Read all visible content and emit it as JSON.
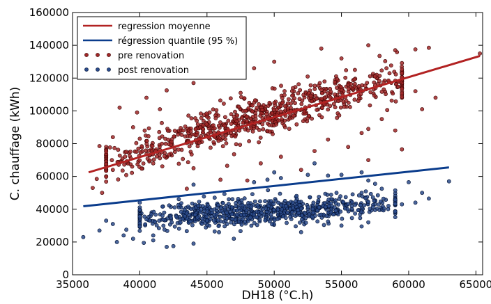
{
  "chart_data": {
    "type": "scatter",
    "title": "",
    "xlabel": "DH18 (°C.h)",
    "ylabel": "C. chauffage (kWh)",
    "xlim": [
      35000,
      65500
    ],
    "ylim": [
      0,
      160000
    ],
    "grid": false,
    "legend_position": "top-left",
    "x_ticks": [
      35000,
      40000,
      45000,
      50000,
      55000,
      60000,
      65000
    ],
    "y_ticks": [
      0,
      20000,
      40000,
      60000,
      80000,
      100000,
      120000,
      140000,
      160000
    ],
    "x_tick_labels": [
      "35000",
      "40000",
      "45000",
      "50000",
      "55000",
      "60000",
      "65000"
    ],
    "y_tick_labels": [
      "0",
      "20000",
      "40000",
      "60000",
      "80000",
      "100000",
      "120000",
      "140000",
      "160000"
    ],
    "lines": [
      {
        "name": "regression moyenne",
        "color": "#b22222",
        "x": [
          36200,
          65300
        ],
        "y": [
          62500,
          133500
        ]
      },
      {
        "name": "régression quantile (95 %)",
        "color": "#0a3c8c",
        "x": [
          35800,
          63000
        ],
        "y": [
          41800,
          65500
        ]
      }
    ],
    "series": [
      {
        "name": "pre renovation",
        "color": "#a02828",
        "edge": "#3a0000",
        "points": [
          [
            36500,
            53000
          ],
          [
            37200,
            50000
          ],
          [
            36800,
            58500
          ],
          [
            38000,
            64000
          ],
          [
            39500,
            90000
          ],
          [
            39800,
            99000
          ],
          [
            38500,
            102000
          ],
          [
            40500,
            108000
          ],
          [
            41500,
            101000
          ],
          [
            42000,
            112500
          ],
          [
            43000,
            120500
          ],
          [
            57000,
            140000
          ],
          [
            59000,
            137000
          ],
          [
            60500,
            137500
          ],
          [
            61500,
            138500
          ],
          [
            65300,
            135000
          ],
          [
            57000,
            89000
          ],
          [
            57000,
            70000
          ],
          [
            52000,
            64000
          ],
          [
            43500,
            52500
          ],
          [
            46000,
            58000
          ],
          [
            48000,
            57500
          ],
          [
            40500,
            73500
          ],
          [
            49000,
            68000
          ],
          [
            53000,
            75500
          ],
          [
            55500,
            78000
          ],
          [
            59000,
            88000
          ],
          [
            59500,
            76500
          ],
          [
            61000,
            101000
          ],
          [
            62000,
            108000
          ],
          [
            60500,
            112000
          ],
          [
            58500,
            118500
          ],
          [
            57500,
            115500
          ],
          [
            56000,
            125000
          ],
          [
            55000,
            132000
          ],
          [
            53500,
            138000
          ],
          [
            50000,
            130000
          ],
          [
            48500,
            126000
          ],
          [
            46500,
            121000
          ],
          [
            45000,
            122000
          ],
          [
            44000,
            117000
          ],
          [
            47500,
            111000
          ],
          [
            38000,
            84000
          ],
          [
            41000,
            68000
          ],
          [
            39000,
            75000
          ],
          [
            37000,
            78500
          ],
          [
            44000,
            65000
          ],
          [
            46500,
            66500
          ],
          [
            50500,
            72000
          ],
          [
            54000,
            82500
          ],
          [
            56500,
            86500
          ],
          [
            58000,
            95000
          ]
        ],
        "cloud": {
          "count": 780,
          "x_min": 39000,
          "x_max": 58000,
          "slope": 2.44,
          "intercept": -23000,
          "spread": 12000
        }
      },
      {
        "name": "post renovation",
        "color": "#2a4a8a",
        "edge": "#001030",
        "points": [
          [
            35800,
            23000
          ],
          [
            37000,
            27000
          ],
          [
            37500,
            33000
          ],
          [
            38000,
            31000
          ],
          [
            38300,
            20000
          ],
          [
            38800,
            24000
          ],
          [
            39000,
            27500
          ],
          [
            39500,
            22000
          ],
          [
            40000,
            29500
          ],
          [
            40300,
            19500
          ],
          [
            41000,
            24000
          ],
          [
            42000,
            17000
          ],
          [
            44000,
            55000
          ],
          [
            48500,
            56500
          ],
          [
            49500,
            58000
          ],
          [
            50000,
            62500
          ],
          [
            50500,
            59000
          ],
          [
            52500,
            61000
          ],
          [
            53000,
            68000
          ],
          [
            54000,
            60500
          ],
          [
            55000,
            61000
          ],
          [
            56500,
            62500
          ],
          [
            57000,
            57500
          ],
          [
            57500,
            55500
          ],
          [
            58000,
            52500
          ],
          [
            59000,
            51500
          ],
          [
            60000,
            56500
          ],
          [
            61000,
            50000
          ],
          [
            61500,
            46500
          ],
          [
            63000,
            57000
          ],
          [
            60500,
            44000
          ],
          [
            59500,
            43000
          ],
          [
            58500,
            42000
          ],
          [
            57000,
            32000
          ],
          [
            55000,
            30000
          ],
          [
            56500,
            29500
          ],
          [
            54000,
            32500
          ],
          [
            52000,
            26000
          ],
          [
            47000,
            22000
          ],
          [
            44000,
            19000
          ],
          [
            42500,
            17500
          ],
          [
            41000,
            21000
          ]
        ],
        "cloud": {
          "count": 780,
          "x_min": 41500,
          "x_max": 57500,
          "slope": 0.5,
          "intercept": 14000,
          "spread": 8000
        }
      }
    ]
  }
}
